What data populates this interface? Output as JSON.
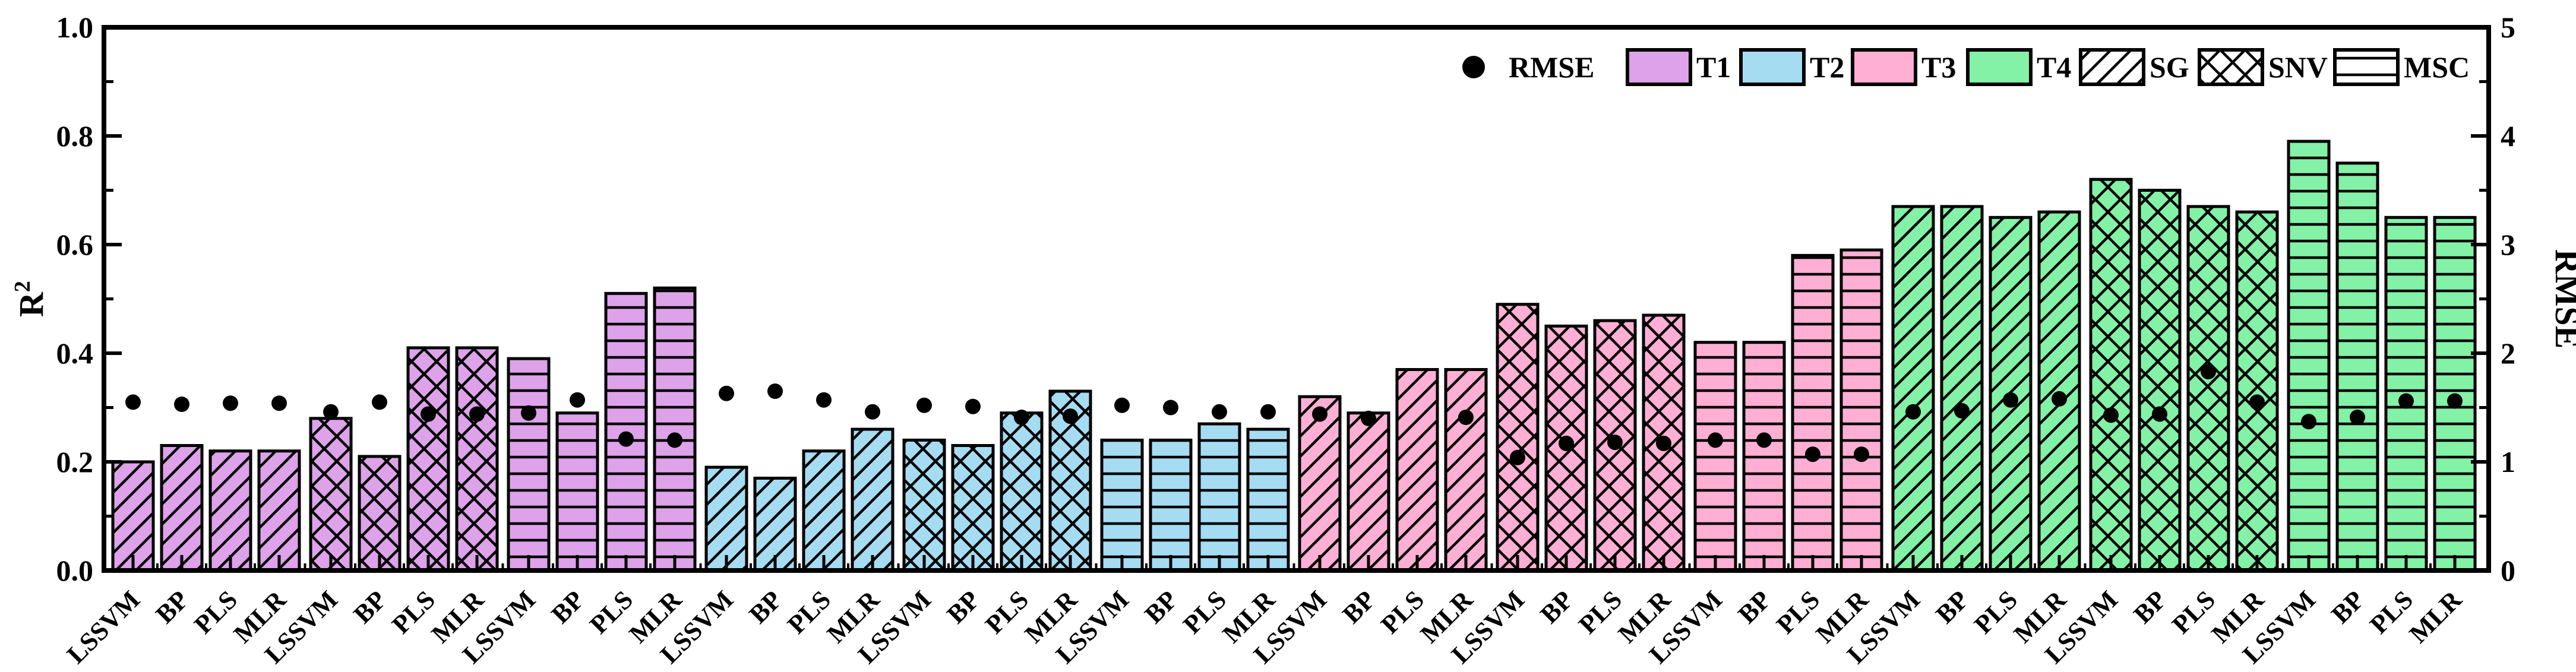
{
  "chart_data": {
    "type": "bar",
    "title": "",
    "y_left": {
      "label": "R",
      "superscript": "2",
      "min": 0,
      "max": 1,
      "major_ticks": [
        "0.0",
        "0.2",
        "0.4",
        "0.6",
        "0.8",
        "1.0"
      ],
      "major_values": [
        0,
        0.2,
        0.4,
        0.6,
        0.8,
        1.0
      ],
      "minor_values": [
        0.1,
        0.3,
        0.5,
        0.7,
        0.9
      ]
    },
    "y_right": {
      "label": "RMSE",
      "min": 0,
      "max": 5,
      "major_ticks": [
        "0",
        "1",
        "2",
        "3",
        "4",
        "5"
      ],
      "major_values": [
        0,
        1,
        2,
        3,
        4,
        5
      ],
      "minor_values": [
        0.5,
        1.5,
        2.5,
        3.5,
        4.5
      ]
    },
    "models": [
      "LSSVM",
      "BP",
      "PLS",
      "MLR"
    ],
    "preprocess": [
      "SG",
      "SNV",
      "MSC"
    ],
    "treatments": [
      {
        "name": "T1",
        "color": "#DDA2E9"
      },
      {
        "name": "T2",
        "color": "#A5DCF2"
      },
      {
        "name": "T3",
        "color": "#FFAFD4"
      },
      {
        "name": "T4",
        "color": "#83F2A6"
      }
    ],
    "legend": [
      {
        "type": "dot",
        "label": "RMSE"
      },
      {
        "type": "fill",
        "label": "T1",
        "color": "#DDA2E9"
      },
      {
        "type": "fill",
        "label": "T2",
        "color": "#A5DCF2"
      },
      {
        "type": "fill",
        "label": "T3",
        "color": "#FFAFD4"
      },
      {
        "type": "fill",
        "label": "T4",
        "color": "#83F2A6"
      },
      {
        "type": "hatch",
        "label": "SG",
        "pattern": "SG"
      },
      {
        "type": "hatch",
        "label": "SNV",
        "pattern": "SNV"
      },
      {
        "type": "hatch",
        "label": "MSC",
        "pattern": "MSC"
      }
    ],
    "bars": [
      {
        "treatment": "T1",
        "preprocess": "SG",
        "model": "LSSVM",
        "r2": 0.2,
        "rmse": 1.55
      },
      {
        "treatment": "T1",
        "preprocess": "SG",
        "model": "BP",
        "r2": 0.23,
        "rmse": 1.53
      },
      {
        "treatment": "T1",
        "preprocess": "SG",
        "model": "PLS",
        "r2": 0.22,
        "rmse": 1.54
      },
      {
        "treatment": "T1",
        "preprocess": "SG",
        "model": "MLR",
        "r2": 0.22,
        "rmse": 1.54
      },
      {
        "treatment": "T1",
        "preprocess": "SNV",
        "model": "LSSVM",
        "r2": 0.28,
        "rmse": 1.46
      },
      {
        "treatment": "T1",
        "preprocess": "SNV",
        "model": "BP",
        "r2": 0.21,
        "rmse": 1.55
      },
      {
        "treatment": "T1",
        "preprocess": "SNV",
        "model": "PLS",
        "r2": 0.41,
        "rmse": 1.44
      },
      {
        "treatment": "T1",
        "preprocess": "SNV",
        "model": "MLR",
        "r2": 0.41,
        "rmse": 1.44
      },
      {
        "treatment": "T1",
        "preprocess": "MSC",
        "model": "LSSVM",
        "r2": 0.39,
        "rmse": 1.45
      },
      {
        "treatment": "T1",
        "preprocess": "MSC",
        "model": "BP",
        "r2": 0.29,
        "rmse": 1.57
      },
      {
        "treatment": "T1",
        "preprocess": "MSC",
        "model": "PLS",
        "r2": 0.51,
        "rmse": 1.21
      },
      {
        "treatment": "T1",
        "preprocess": "MSC",
        "model": "MLR",
        "r2": 0.52,
        "rmse": 1.2
      },
      {
        "treatment": "T2",
        "preprocess": "SG",
        "model": "LSSVM",
        "r2": 0.19,
        "rmse": 1.63
      },
      {
        "treatment": "T2",
        "preprocess": "SG",
        "model": "BP",
        "r2": 0.17,
        "rmse": 1.65
      },
      {
        "treatment": "T2",
        "preprocess": "SG",
        "model": "PLS",
        "r2": 0.22,
        "rmse": 1.57
      },
      {
        "treatment": "T2",
        "preprocess": "SG",
        "model": "MLR",
        "r2": 0.26,
        "rmse": 1.46
      },
      {
        "treatment": "T2",
        "preprocess": "SNV",
        "model": "LSSVM",
        "r2": 0.24,
        "rmse": 1.52
      },
      {
        "treatment": "T2",
        "preprocess": "SNV",
        "model": "BP",
        "r2": 0.23,
        "rmse": 1.51
      },
      {
        "treatment": "T2",
        "preprocess": "SNV",
        "model": "PLS",
        "r2": 0.29,
        "rmse": 1.41
      },
      {
        "treatment": "T2",
        "preprocess": "SNV",
        "model": "MLR",
        "r2": 0.33,
        "rmse": 1.42
      },
      {
        "treatment": "T2",
        "preprocess": "MSC",
        "model": "LSSVM",
        "r2": 0.24,
        "rmse": 1.52
      },
      {
        "treatment": "T2",
        "preprocess": "MSC",
        "model": "BP",
        "r2": 0.24,
        "rmse": 1.5
      },
      {
        "treatment": "T2",
        "preprocess": "MSC",
        "model": "PLS",
        "r2": 0.27,
        "rmse": 1.46
      },
      {
        "treatment": "T2",
        "preprocess": "MSC",
        "model": "MLR",
        "r2": 0.26,
        "rmse": 1.46
      },
      {
        "treatment": "T3",
        "preprocess": "SG",
        "model": "LSSVM",
        "r2": 0.32,
        "rmse": 1.44
      },
      {
        "treatment": "T3",
        "preprocess": "SG",
        "model": "BP",
        "r2": 0.29,
        "rmse": 1.4
      },
      {
        "treatment": "T3",
        "preprocess": "SG",
        "model": "PLS",
        "r2": 0.37,
        "rmse": null
      },
      {
        "treatment": "T3",
        "preprocess": "SG",
        "model": "MLR",
        "r2": 0.37,
        "rmse": 1.41
      },
      {
        "treatment": "T3",
        "preprocess": "SNV",
        "model": "LSSVM",
        "r2": 0.49,
        "rmse": 1.04
      },
      {
        "treatment": "T3",
        "preprocess": "SNV",
        "model": "BP",
        "r2": 0.45,
        "rmse": 1.17
      },
      {
        "treatment": "T3",
        "preprocess": "SNV",
        "model": "PLS",
        "r2": 0.46,
        "rmse": 1.18
      },
      {
        "treatment": "T3",
        "preprocess": "SNV",
        "model": "MLR",
        "r2": 0.47,
        "rmse": 1.17
      },
      {
        "treatment": "T3",
        "preprocess": "MSC",
        "model": "LSSVM",
        "r2": 0.42,
        "rmse": 1.2
      },
      {
        "treatment": "T3",
        "preprocess": "MSC",
        "model": "BP",
        "r2": 0.42,
        "rmse": 1.2
      },
      {
        "treatment": "T3",
        "preprocess": "MSC",
        "model": "PLS",
        "r2": 0.58,
        "rmse": 1.07
      },
      {
        "treatment": "T3",
        "preprocess": "MSC",
        "model": "MLR",
        "r2": 0.59,
        "rmse": 1.07
      },
      {
        "treatment": "T4",
        "preprocess": "SG",
        "model": "LSSVM",
        "r2": 0.67,
        "rmse": 1.46
      },
      {
        "treatment": "T4",
        "preprocess": "SG",
        "model": "BP",
        "r2": 0.67,
        "rmse": 1.47
      },
      {
        "treatment": "T4",
        "preprocess": "SG",
        "model": "PLS",
        "r2": 0.65,
        "rmse": 1.57
      },
      {
        "treatment": "T4",
        "preprocess": "SG",
        "model": "MLR",
        "r2": 0.66,
        "rmse": 1.58
      },
      {
        "treatment": "T4",
        "preprocess": "SNV",
        "model": "LSSVM",
        "r2": 0.72,
        "rmse": 1.43
      },
      {
        "treatment": "T4",
        "preprocess": "SNV",
        "model": "BP",
        "r2": 0.7,
        "rmse": 1.44
      },
      {
        "treatment": "T4",
        "preprocess": "SNV",
        "model": "PLS",
        "r2": 0.67,
        "rmse": 1.83
      },
      {
        "treatment": "T4",
        "preprocess": "SNV",
        "model": "MLR",
        "r2": 0.66,
        "rmse": 1.55
      },
      {
        "treatment": "T4",
        "preprocess": "MSC",
        "model": "LSSVM",
        "r2": 0.79,
        "rmse": 1.37
      },
      {
        "treatment": "T4",
        "preprocess": "MSC",
        "model": "BP",
        "r2": 0.75,
        "rmse": 1.41
      },
      {
        "treatment": "T4",
        "preprocess": "MSC",
        "model": "PLS",
        "r2": 0.65,
        "rmse": 1.56
      },
      {
        "treatment": "T4",
        "preprocess": "MSC",
        "model": "MLR",
        "r2": 0.65,
        "rmse": 1.56
      }
    ],
    "layout_hints": {
      "grid": false,
      "legend_position": "top-right-inside",
      "bar_edge_color": "#000000",
      "dot_color": "#000000"
    }
  }
}
